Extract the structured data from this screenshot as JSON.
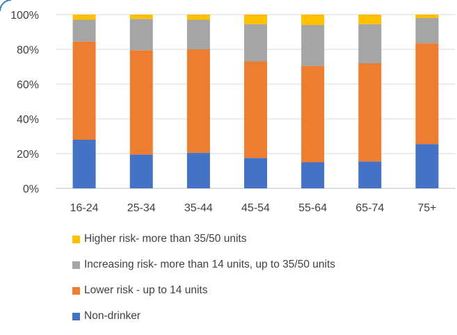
{
  "chart_data": {
    "type": "bar",
    "stacked": true,
    "categories": [
      "16-24",
      "25-34",
      "35-44",
      "45-54",
      "55-64",
      "65-74",
      "75+"
    ],
    "series": [
      {
        "name": "Non-drinker",
        "color": "#4472C4",
        "values": [
          28,
          19.5,
          20.5,
          17.5,
          15,
          15.5,
          25.5
        ]
      },
      {
        "name": "Lower risk - up to 14 units",
        "color": "#ED7D31",
        "values": [
          56.5,
          60,
          59.5,
          55.5,
          55.5,
          56.5,
          58
        ]
      },
      {
        "name": "Increasing risk- more than 14 units, up to 35/50 units",
        "color": "#A5A5A5",
        "values": [
          12.5,
          18,
          17,
          21.5,
          23.5,
          22.5,
          14.5
        ]
      },
      {
        "name": "Higher risk- more than 35/50 units",
        "color": "#FFC000",
        "values": [
          3,
          2.5,
          3,
          5.5,
          6,
          5.5,
          2
        ]
      }
    ],
    "yticks": [
      "0%",
      "20%",
      "40%",
      "60%",
      "80%",
      "100%"
    ],
    "ylim": [
      0,
      100
    ],
    "grid": true,
    "legend_position": "bottom"
  },
  "legend_items": [
    {
      "label": "Higher risk- more than 35/50 units",
      "color": "#FFC000"
    },
    {
      "label": "Increasing risk- more than 14 units, up to 35/50 units",
      "color": "#A5A5A5"
    },
    {
      "label": "Lower risk - up to 14 units",
      "color": "#ED7D31"
    },
    {
      "label": "Non-drinker",
      "color": "#4472C4"
    }
  ]
}
